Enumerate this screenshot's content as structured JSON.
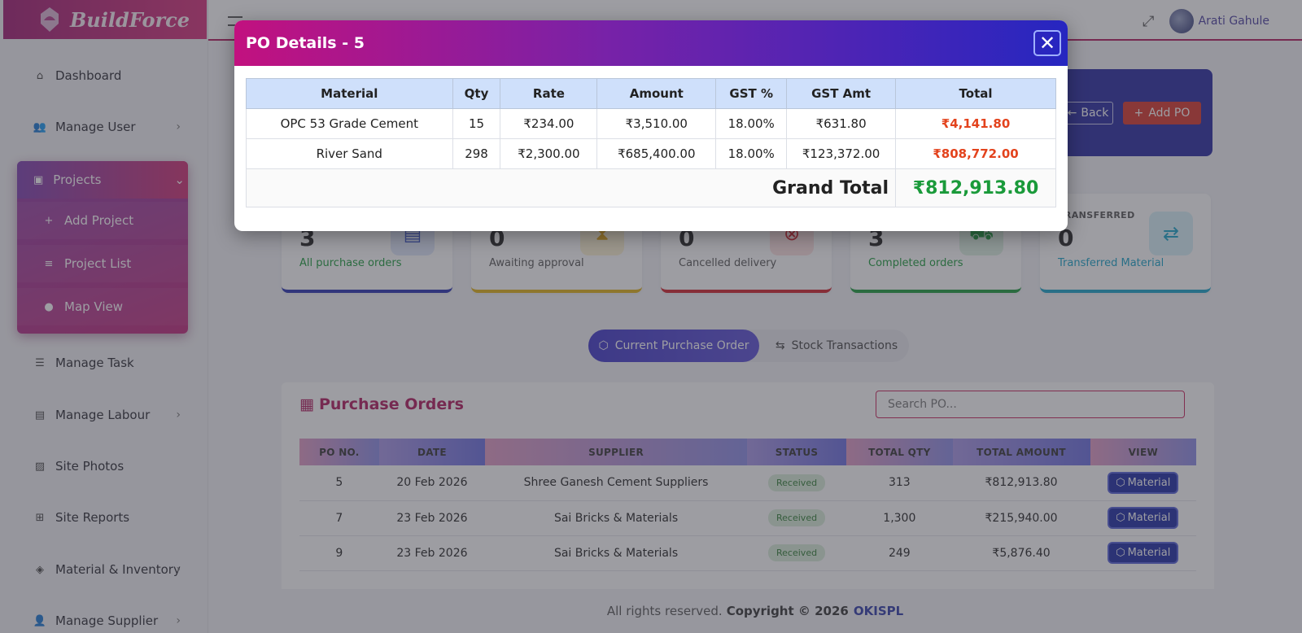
{
  "brand": {
    "name": "BuildForce"
  },
  "sidebar": {
    "items": [
      {
        "label": "Dashboard",
        "icon": "home-icon"
      },
      {
        "label": "Manage User",
        "icon": "users-icon"
      },
      {
        "label": "Projects",
        "icon": "projects-icon"
      },
      {
        "label": "Manage Task",
        "icon": "list-icon"
      },
      {
        "label": "Manage Labour",
        "icon": "labour-icon"
      },
      {
        "label": "Site Photos",
        "icon": "photo-icon"
      },
      {
        "label": "Site Reports",
        "icon": "reports-icon"
      },
      {
        "label": "Material & Inventory",
        "icon": "layers-icon"
      },
      {
        "label": "Manage Supplier",
        "icon": "supplier-icon"
      }
    ],
    "projects_sub": [
      {
        "label": "Add Project",
        "icon": "plus-icon"
      },
      {
        "label": "Project List",
        "icon": "list-icon"
      },
      {
        "label": "Map View",
        "icon": "map-pin-icon"
      }
    ]
  },
  "topbar": {
    "user_name": "Arati Gahule"
  },
  "banner": {
    "back_label": "Back",
    "add_po_label": "Add PO"
  },
  "stats": [
    {
      "value": "3",
      "label": "All purchase orders",
      "color": "#1a9a3a"
    },
    {
      "value": "0",
      "label": "Awaiting approval",
      "color": "#555555"
    },
    {
      "value": "0",
      "label": "Cancelled delivery",
      "color": "#555555"
    },
    {
      "value": "3",
      "label": "Completed orders",
      "color": "#1a9a3a"
    },
    {
      "value": "0",
      "label": "Transferred Material",
      "caption": "TRANSFERRED",
      "color": "#17a2c8"
    }
  ],
  "tabs": {
    "current": "Current Purchase Order",
    "stock": "Stock Transactions"
  },
  "purchase_orders": {
    "title": "Purchase Orders",
    "search_placeholder": "Search PO...",
    "headers": [
      "PO NO.",
      "DATE",
      "SUPPLIER",
      "STATUS",
      "TOTAL QTY",
      "TOTAL AMOUNT",
      "VIEW"
    ],
    "rows": [
      {
        "po": "5",
        "date": "20 Feb 2026",
        "supplier": "Shree Ganesh Cement Suppliers",
        "status": "Received",
        "qty": "313",
        "amount": "₹812,913.80",
        "view": "Material"
      },
      {
        "po": "7",
        "date": "23 Feb 2026",
        "supplier": "Sai Bricks & Materials",
        "status": "Received",
        "qty": "1,300",
        "amount": "₹215,940.00",
        "view": "Material"
      },
      {
        "po": "9",
        "date": "23 Feb 2026",
        "supplier": "Sai Bricks & Materials",
        "status": "Received",
        "qty": "249",
        "amount": "₹5,876.40",
        "view": "Material"
      }
    ]
  },
  "footer": {
    "text": "All rights reserved.",
    "copyright": "Copyright © 2026",
    "company": "OKISPL"
  },
  "modal": {
    "title": "PO Details - 5",
    "headers": [
      "Material",
      "Qty",
      "Rate",
      "Amount",
      "GST %",
      "GST Amt",
      "Total"
    ],
    "rows": [
      {
        "material": "OPC 53 Grade Cement",
        "qty": "15",
        "rate": "₹234.00",
        "amount": "₹3,510.00",
        "gst_pct": "18.00%",
        "gst_amt": "₹631.80",
        "total": "₹4,141.80"
      },
      {
        "material": "River Sand",
        "qty": "298",
        "rate": "₹2,300.00",
        "amount": "₹685,400.00",
        "gst_pct": "18.00%",
        "gst_amt": "₹123,372.00",
        "total": "₹808,772.00"
      }
    ],
    "grand_total_label": "Grand Total",
    "grand_total_value": "₹812,913.80"
  }
}
